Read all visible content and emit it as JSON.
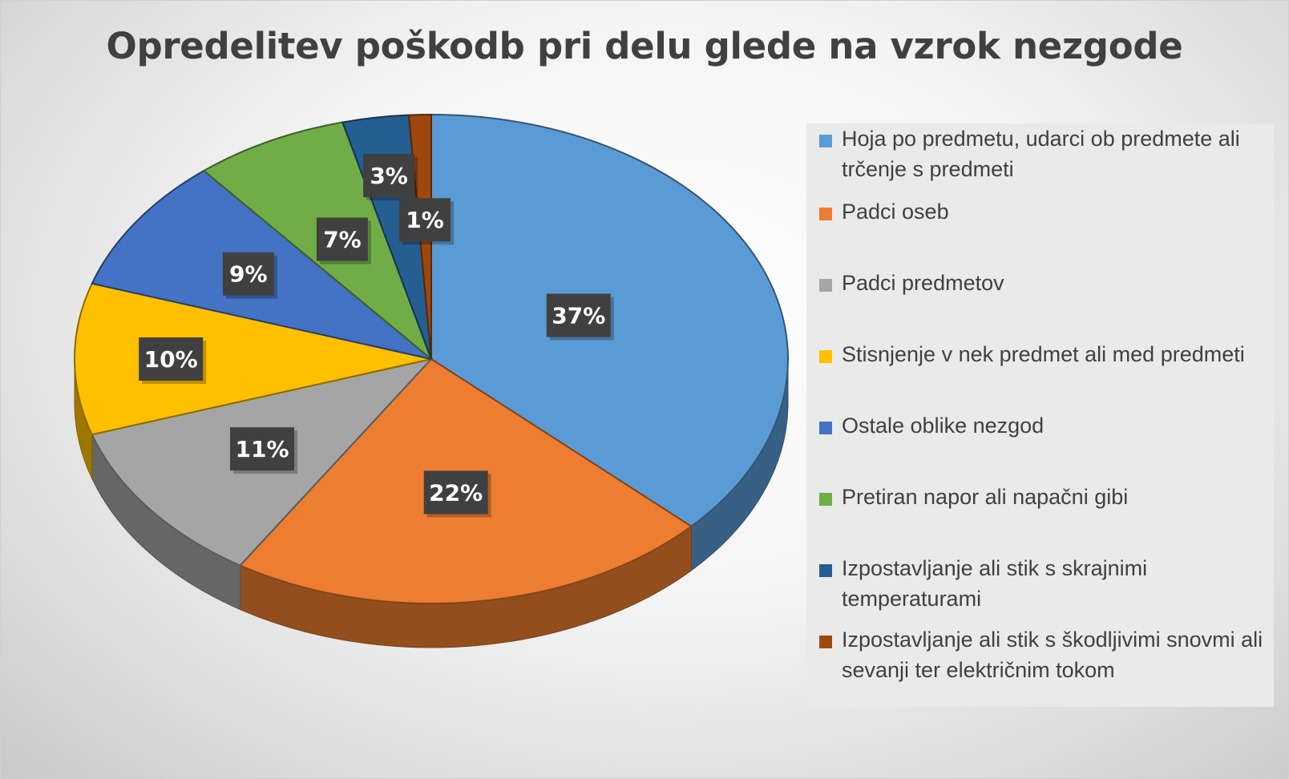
{
  "chart_data": {
    "type": "pie",
    "title": "Opredelitev poškodb pri delu glede na vzrok nezgode",
    "legend_position": "right",
    "categories": [
      "Hoja po predmetu, udarci ob predmete ali trčenje s predmeti",
      "Padci oseb",
      "Padci predmetov",
      "Stisnjenje v nek predmet ali med predmeti",
      "Ostale oblike nezgod",
      "Pretiran napor ali napačni gibi",
      "Izpostavljanje ali stik s skrajnimi temperaturami",
      "Izpostavljanje ali stik s škodljivimi snovmi ali sevanji ter električnim tokom"
    ],
    "values": [
      37,
      22,
      11,
      10,
      9,
      7,
      3,
      1
    ],
    "data_labels": [
      "37%",
      "22%",
      "11%",
      "10%",
      "9%",
      "7%",
      "3%",
      "1%"
    ],
    "colors": [
      "#5b9bd5",
      "#ed7d31",
      "#a5a5a5",
      "#ffc000",
      "#4472c4",
      "#70ad47",
      "#255e91",
      "#9e480e"
    ]
  }
}
